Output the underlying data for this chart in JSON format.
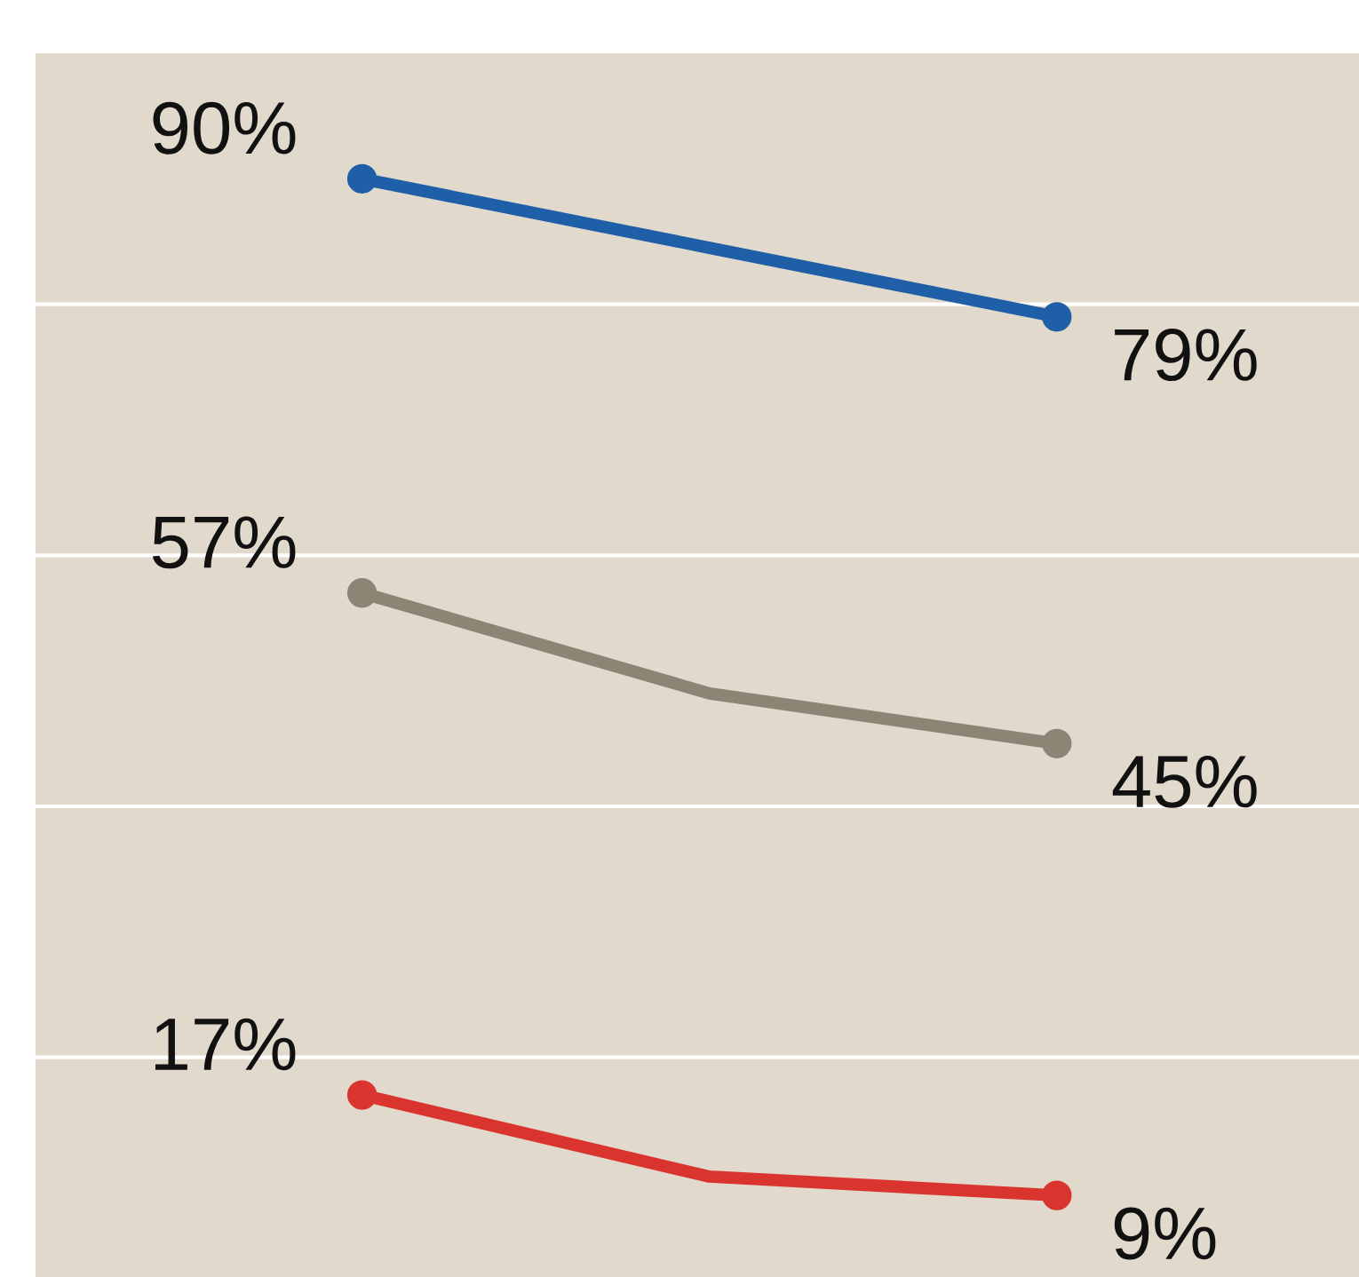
{
  "chart_data": {
    "type": "line",
    "categories": [
      null,
      null,
      null
    ],
    "series": [
      {
        "color": "#1f5fa8",
        "values": [
          90,
          84.5,
          79
        ],
        "value_labels": [
          "90%",
          null,
          "79%"
        ]
      },
      {
        "color": "#8c8474",
        "values": [
          57,
          49,
          45
        ],
        "value_labels": [
          "57%",
          null,
          "45%"
        ]
      },
      {
        "color": "#d9352e",
        "values": [
          17,
          10.5,
          9
        ],
        "value_labels": [
          "17%",
          null,
          "9%"
        ]
      }
    ],
    "ylim": [
      2.5,
      100
    ],
    "yticks": [
      {
        "value": 20,
        "label": null
      },
      {
        "value": 40,
        "label": null
      },
      {
        "value": 60,
        "label": null
      },
      {
        "value": 80,
        "label": null
      }
    ],
    "grid": "y",
    "legend": false,
    "marker": "circle",
    "line_style": "solid"
  }
}
